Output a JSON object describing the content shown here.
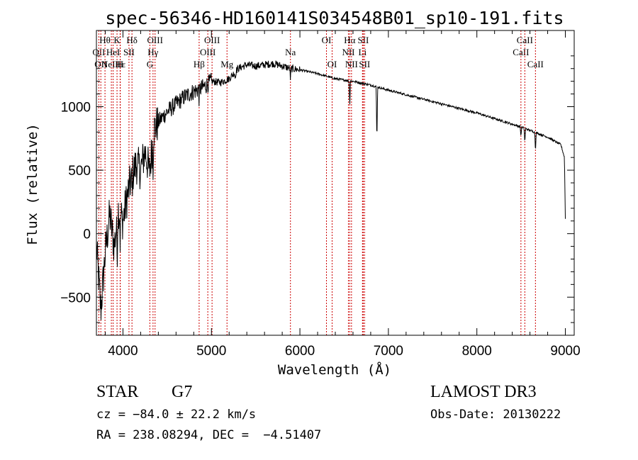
{
  "chart_data": {
    "type": "line",
    "title": "spec-56346-HD160141S034548B01_sp10-191.fits",
    "xlabel": "Wavelength (Å)",
    "ylabel": "Flux (relative)",
    "xlim": [
      3700,
      9100
    ],
    "ylim": [
      -800,
      1600
    ],
    "xticks": [
      4000,
      5000,
      6000,
      7000,
      8000,
      9000
    ],
    "yticks": [
      -500,
      0,
      500,
      1000
    ],
    "xtick_labels": [
      "4000",
      "5000",
      "6000",
      "7000",
      "8000",
      "9000"
    ],
    "ytick_labels": [
      "−500",
      "0",
      "500",
      "1000"
    ],
    "series": [
      {
        "name": "spectrum",
        "anchors": [
          [
            3700,
            -100
          ],
          [
            3750,
            -600
          ],
          [
            3800,
            -150
          ],
          [
            3850,
            150
          ],
          [
            3900,
            -100
          ],
          [
            3950,
            200
          ],
          [
            4000,
            100
          ],
          [
            4050,
            300
          ],
          [
            4100,
            450
          ],
          [
            4150,
            550
          ],
          [
            4200,
            500
          ],
          [
            4250,
            650
          ],
          [
            4300,
            480
          ],
          [
            4350,
            820
          ],
          [
            4400,
            880
          ],
          [
            4500,
            960
          ],
          [
            4600,
            1020
          ],
          [
            4700,
            1080
          ],
          [
            4800,
            1120
          ],
          [
            4900,
            1150
          ],
          [
            5000,
            1200
          ],
          [
            5100,
            1190
          ],
          [
            5200,
            1220
          ],
          [
            5300,
            1300
          ],
          [
            5400,
            1330
          ],
          [
            5500,
            1320
          ],
          [
            5600,
            1330
          ],
          [
            5700,
            1340
          ],
          [
            5800,
            1320
          ],
          [
            5900,
            1300
          ],
          [
            6000,
            1290
          ],
          [
            6200,
            1260
          ],
          [
            6400,
            1220
          ],
          [
            6600,
            1200
          ],
          [
            6800,
            1170
          ],
          [
            7000,
            1130
          ],
          [
            7500,
            1040
          ],
          [
            8000,
            950
          ],
          [
            8500,
            840
          ],
          [
            8800,
            760
          ],
          [
            8950,
            700
          ],
          [
            8990,
            600
          ],
          [
            9000,
            120
          ]
        ],
        "dips": [
          [
            3934,
            300
          ],
          [
            3969,
            250
          ],
          [
            4102,
            150
          ],
          [
            4340,
            200
          ],
          [
            4861,
            80
          ],
          [
            5270,
            60
          ],
          [
            5893,
            90
          ],
          [
            6563,
            200
          ],
          [
            6870,
            460
          ],
          [
            8498,
            80
          ],
          [
            8542,
            120
          ],
          [
            8662,
            150
          ]
        ]
      }
    ],
    "line_markers": [
      {
        "wavelength": 3727,
        "label": "OII",
        "row": 1
      },
      {
        "wavelength": 3750,
        "label": "OII",
        "row": 2
      },
      {
        "wavelength": 3797,
        "label": "Hθ",
        "row": 0
      },
      {
        "wavelength": 3869,
        "label": "NeIII",
        "row": 2
      },
      {
        "wavelength": 3889,
        "label": "HeI",
        "row": 1
      },
      {
        "wavelength": 3933,
        "label": "K",
        "row": 0
      },
      {
        "wavelength": 3970,
        "label": "Hε",
        "row": 2
      },
      {
        "wavelength": 3968,
        "label": "H",
        "row": 2
      },
      {
        "wavelength": 4068,
        "label": "SII",
        "row": 1
      },
      {
        "wavelength": 4102,
        "label": "Hδ",
        "row": 0
      },
      {
        "wavelength": 4304,
        "label": "G",
        "row": 2
      },
      {
        "wavelength": 4340,
        "label": "Hγ",
        "row": 1
      },
      {
        "wavelength": 4363,
        "label": "OIII",
        "row": 0
      },
      {
        "wavelength": 4861,
        "label": "Hβ",
        "row": 2
      },
      {
        "wavelength": 4959,
        "label": "OIII",
        "row": 1
      },
      {
        "wavelength": 5007,
        "label": "OIII",
        "row": 0
      },
      {
        "wavelength": 5176,
        "label": "Mg",
        "row": 2
      },
      {
        "wavelength": 5893,
        "label": "Na",
        "row": 1
      },
      {
        "wavelength": 6300,
        "label": "OI",
        "row": 0
      },
      {
        "wavelength": 6364,
        "label": "OI",
        "row": 2
      },
      {
        "wavelength": 6548,
        "label": "NII",
        "row": 1
      },
      {
        "wavelength": 6563,
        "label": "Hα",
        "row": 0
      },
      {
        "wavelength": 6583,
        "label": "NII",
        "row": 2
      },
      {
        "wavelength": 6707,
        "label": "Li",
        "row": 1
      },
      {
        "wavelength": 6716,
        "label": "SII",
        "row": 0
      },
      {
        "wavelength": 6731,
        "label": "SII",
        "row": 2
      },
      {
        "wavelength": 8498,
        "label": "CaII",
        "row": 1
      },
      {
        "wavelength": 8542,
        "label": "CaII",
        "row": 0
      },
      {
        "wavelength": 8662,
        "label": "CaII",
        "row": 2
      }
    ]
  },
  "info": {
    "class": "STAR",
    "subclass": "G7",
    "survey": "LAMOST DR3",
    "cz": "cz = −84.0 ± 22.2 km/s",
    "obs_date": "Obs-Date: 20130222",
    "coords": "RA = 238.08294, DEC =  −4.51407"
  }
}
